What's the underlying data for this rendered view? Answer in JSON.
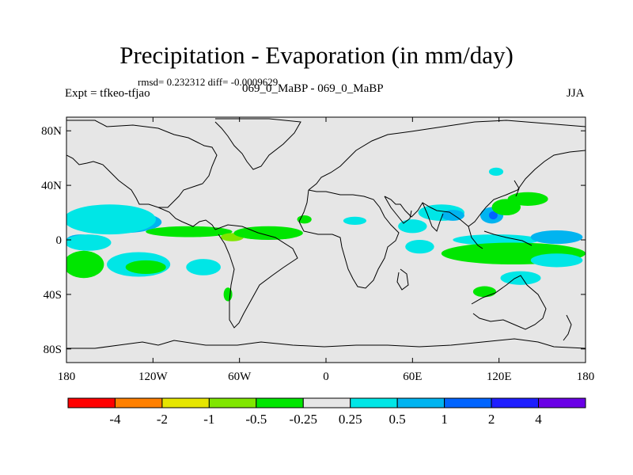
{
  "title": "Precipitation - Evaporation (in mm/day)",
  "stats": "rmsd= 0.232312 diff= -0.0009629",
  "experiment": "Expt = tfkeo-tfjao",
  "subtitle": "069_0_MaBP - 069_0_MaBP",
  "season": "JJA",
  "map": {
    "projection": "cylindrical equidistant",
    "lon_range": [
      -180,
      180
    ],
    "lat_range": [
      -90,
      90
    ],
    "background_color": "#e6e6e6",
    "coastline_color": "#000000"
  },
  "y_ticks": [
    {
      "lat": 80,
      "label": "80N"
    },
    {
      "lat": 40,
      "label": "40N"
    },
    {
      "lat": 0,
      "label": "0"
    },
    {
      "lat": -40,
      "label": "40S"
    },
    {
      "lat": -80,
      "label": "80S"
    }
  ],
  "x_ticks": [
    {
      "lon": -180,
      "label": "180"
    },
    {
      "lon": -120,
      "label": "120W"
    },
    {
      "lon": -60,
      "label": "60W"
    },
    {
      "lon": 0,
      "label": "0"
    },
    {
      "lon": 60,
      "label": "60E"
    },
    {
      "lon": 120,
      "label": "120E"
    },
    {
      "lon": 180,
      "label": "180"
    }
  ],
  "colorbar": {
    "colors": [
      "#ff0000",
      "#ff8000",
      "#e6e600",
      "#80e600",
      "#00e600",
      "#e6e6e6",
      "#00e6e6",
      "#00b4f0",
      "#0064ff",
      "#1e1eff",
      "#6a00e6"
    ],
    "labels": [
      "-4",
      "-2",
      "-1",
      "-0.5",
      "-0.25",
      "0.25",
      "0.5",
      "1",
      "2",
      "4"
    ]
  },
  "anomaly_patches": [
    {
      "lon": -138,
      "lat": 13,
      "rx": 22,
      "ry": 4,
      "color": "#0064ff"
    },
    {
      "lon": -142,
      "lat": 13,
      "rx": 28,
      "ry": 8,
      "color": "#00b4f0"
    },
    {
      "lon": -150,
      "lat": 15,
      "rx": 32,
      "ry": 11,
      "color": "#00e6e6"
    },
    {
      "lon": -95,
      "lat": 6,
      "rx": 30,
      "ry": 4,
      "color": "#00e600"
    },
    {
      "lon": -65,
      "lat": 2,
      "rx": 8,
      "ry": 3,
      "color": "#80e600"
    },
    {
      "lon": -40,
      "lat": 5,
      "rx": 24,
      "ry": 5,
      "color": "#00e600"
    },
    {
      "lon": -170,
      "lat": 0,
      "rx": 10,
      "ry": 4,
      "color": "#00b4f0"
    },
    {
      "lon": -165,
      "lat": -2,
      "rx": 16,
      "ry": 6,
      "color": "#00e6e6"
    },
    {
      "lon": -168,
      "lat": -18,
      "rx": 14,
      "ry": 10,
      "color": "#00e600"
    },
    {
      "lon": -130,
      "lat": -18,
      "rx": 22,
      "ry": 9,
      "color": "#00e6e6"
    },
    {
      "lon": -125,
      "lat": -20,
      "rx": 14,
      "ry": 5,
      "color": "#00e600"
    },
    {
      "lon": -85,
      "lat": -20,
      "rx": 12,
      "ry": 6,
      "color": "#00e6e6"
    },
    {
      "lon": -68,
      "lat": -40,
      "rx": 3,
      "ry": 5,
      "color": "#00e600"
    },
    {
      "lon": -15,
      "lat": 15,
      "rx": 5,
      "ry": 3,
      "color": "#00e600"
    },
    {
      "lon": 20,
      "lat": 14,
      "rx": 8,
      "ry": 3,
      "color": "#00e6e6"
    },
    {
      "lon": 60,
      "lat": 10,
      "rx": 10,
      "ry": 5,
      "color": "#00e6e6"
    },
    {
      "lon": 65,
      "lat": -5,
      "rx": 10,
      "ry": 5,
      "color": "#00e6e6"
    },
    {
      "lon": 80,
      "lat": 20,
      "rx": 16,
      "ry": 6,
      "color": "#00e6e6"
    },
    {
      "lon": 88,
      "lat": 18,
      "rx": 8,
      "ry": 4,
      "color": "#00b4f0"
    },
    {
      "lon": 115,
      "lat": 18,
      "rx": 8,
      "ry": 6,
      "color": "#00b4f0"
    },
    {
      "lon": 116,
      "lat": 18,
      "rx": 3,
      "ry": 3,
      "color": "#0064ff"
    },
    {
      "lon": 125,
      "lat": 24,
      "rx": 10,
      "ry": 6,
      "color": "#00e600"
    },
    {
      "lon": 140,
      "lat": 30,
      "rx": 14,
      "ry": 5,
      "color": "#00e600"
    },
    {
      "lon": 118,
      "lat": 0,
      "rx": 30,
      "ry": 4,
      "color": "#00e6e6"
    },
    {
      "lon": 160,
      "lat": 2,
      "rx": 18,
      "ry": 5,
      "color": "#00b4f0"
    },
    {
      "lon": 130,
      "lat": -10,
      "rx": 50,
      "ry": 8,
      "color": "#00e600"
    },
    {
      "lon": 160,
      "lat": -15,
      "rx": 18,
      "ry": 5,
      "color": "#00e6e6"
    },
    {
      "lon": 110,
      "lat": -38,
      "rx": 8,
      "ry": 4,
      "color": "#00e600"
    },
    {
      "lon": 135,
      "lat": -28,
      "rx": 14,
      "ry": 5,
      "color": "#00e6e6"
    },
    {
      "lon": 118,
      "lat": 50,
      "rx": 5,
      "ry": 3,
      "color": "#00e6e6"
    }
  ]
}
